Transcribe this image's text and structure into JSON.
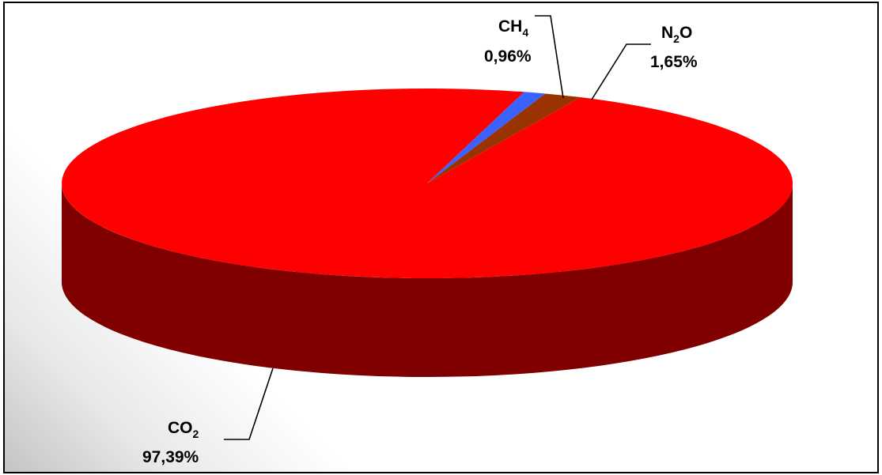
{
  "chart_data": {
    "type": "pie",
    "style": "3d",
    "slices": [
      {
        "label_main": "CO",
        "label_sub": "2",
        "label_tail": "",
        "value": 97.39,
        "display": "97,39%",
        "color": "#ff0000",
        "side_color": "#800000"
      },
      {
        "label_main": "CH",
        "label_sub": "4",
        "label_tail": "",
        "value": 0.96,
        "display": "0,96%",
        "color": "#3b62ff",
        "side_color": "#22389a"
      },
      {
        "label_main": "N",
        "label_sub": "2",
        "label_tail": "O",
        "value": 1.65,
        "display": "1,65%",
        "color": "#993300",
        "side_color": "#5c1f00"
      }
    ]
  }
}
